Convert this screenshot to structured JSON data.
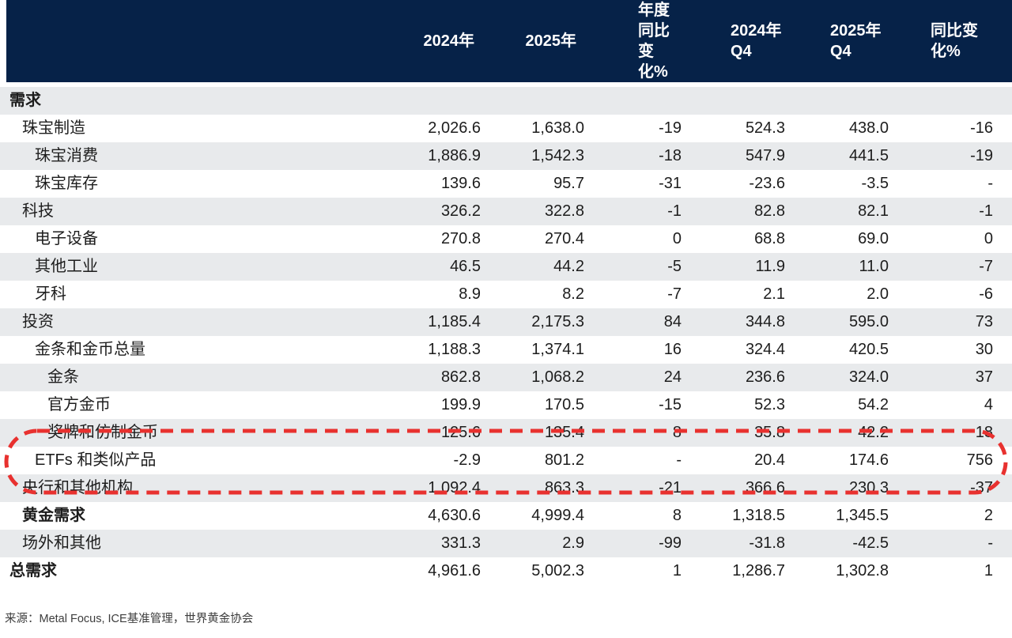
{
  "chart_data": {
    "type": "table",
    "columns": [
      "",
      "2024年",
      "2025年",
      "年度同比\n变化%",
      "2024年\nQ4",
      "2025年\nQ4",
      "同比变\n化%"
    ],
    "rows": [
      {
        "label": "需求",
        "indent": 0,
        "bold": true,
        "values": [
          "",
          "",
          "",
          "",
          "",
          ""
        ]
      },
      {
        "label": "珠宝制造",
        "indent": 1,
        "bold": false,
        "values": [
          "2,026.6",
          "1,638.0",
          "-19",
          "524.3",
          "438.0",
          "-16"
        ]
      },
      {
        "label": "珠宝消费",
        "indent": 2,
        "bold": false,
        "values": [
          "1,886.9",
          "1,542.3",
          "-18",
          "547.9",
          "441.5",
          "-19"
        ]
      },
      {
        "label": "珠宝库存",
        "indent": 2,
        "bold": false,
        "values": [
          "139.6",
          "95.7",
          "-31",
          "-23.6",
          "-3.5",
          "-"
        ]
      },
      {
        "label": "科技",
        "indent": 1,
        "bold": false,
        "values": [
          "326.2",
          "322.8",
          "-1",
          "82.8",
          "82.1",
          "-1"
        ]
      },
      {
        "label": "电子设备",
        "indent": 2,
        "bold": false,
        "values": [
          "270.8",
          "270.4",
          "0",
          "68.8",
          "69.0",
          "0"
        ]
      },
      {
        "label": "其他工业",
        "indent": 2,
        "bold": false,
        "values": [
          "46.5",
          "44.2",
          "-5",
          "11.9",
          "11.0",
          "-7"
        ]
      },
      {
        "label": "牙科",
        "indent": 2,
        "bold": false,
        "values": [
          "8.9",
          "8.2",
          "-7",
          "2.1",
          "2.0",
          "-6"
        ]
      },
      {
        "label": "投资",
        "indent": 1,
        "bold": false,
        "values": [
          "1,185.4",
          "2,175.3",
          "84",
          "344.8",
          "595.0",
          "73"
        ]
      },
      {
        "label": "金条和金币总量",
        "indent": 2,
        "bold": false,
        "values": [
          "1,188.3",
          "1,374.1",
          "16",
          "324.4",
          "420.5",
          "30"
        ]
      },
      {
        "label": "金条",
        "indent": 3,
        "bold": false,
        "values": [
          "862.8",
          "1,068.2",
          "24",
          "236.6",
          "324.0",
          "37"
        ]
      },
      {
        "label": "官方金币",
        "indent": 3,
        "bold": false,
        "values": [
          "199.9",
          "170.5",
          "-15",
          "52.3",
          "54.2",
          "4"
        ]
      },
      {
        "label": "奖牌和仿制金币",
        "indent": 3,
        "bold": false,
        "values": [
          "125.6",
          "135.4",
          "8",
          "35.8",
          "42.2",
          "18"
        ]
      },
      {
        "label": "ETFs 和类似产品",
        "indent": 2,
        "bold": false,
        "values": [
          "-2.9",
          "801.2",
          "-",
          "20.4",
          "174.6",
          "756"
        ]
      },
      {
        "label": "央行和其他机构",
        "indent": 1,
        "bold": false,
        "values": [
          "1,092.4",
          "863.3",
          "-21",
          "366.6",
          "230.3",
          "-37"
        ]
      },
      {
        "label": "黄金需求",
        "indent": 1,
        "bold": true,
        "values": [
          "4,630.6",
          "4,999.4",
          "8",
          "1,318.5",
          "1,345.5",
          "2"
        ]
      },
      {
        "label": "场外和其他",
        "indent": 1,
        "bold": false,
        "values": [
          "331.3",
          "2.9",
          "-99",
          "-31.8",
          "-42.5",
          "-"
        ]
      },
      {
        "label": "总需求",
        "indent": 0,
        "bold": true,
        "values": [
          "4,961.6",
          "5,002.3",
          "1",
          "1,286.7",
          "1,302.8",
          "1"
        ]
      }
    ]
  },
  "highlight": {
    "rows_circled": [
      "ETFs 和类似产品",
      "央行和其他机构"
    ],
    "color": "#e8312f"
  },
  "source_note": "来源：Metal Focus, ICE基准管理，世界黄金协会",
  "colors": {
    "header_bg": "#062248",
    "header_text": "#ffffff",
    "stripe_bg": "#e8eaec",
    "text": "#1d1d1d",
    "highlight_red": "#e8312f",
    "source_text": "#3d3d3d"
  }
}
